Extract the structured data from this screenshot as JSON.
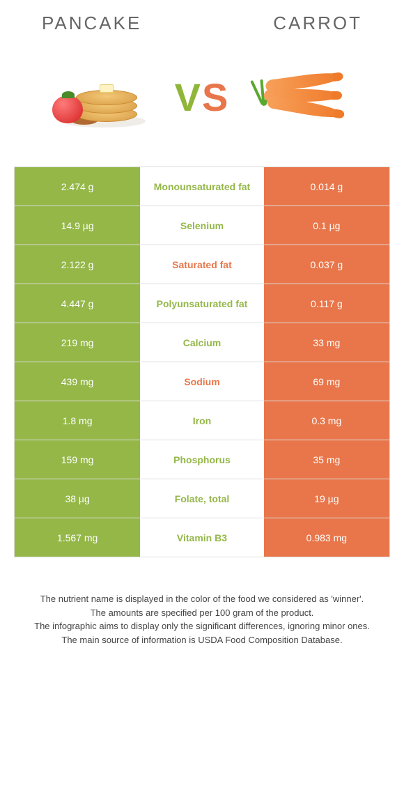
{
  "header": {
    "left_title": "PANCAKE",
    "right_title": "CARROT",
    "vs_v": "V",
    "vs_s": "S"
  },
  "colors": {
    "left_bg": "#94b748",
    "right_bg": "#e8764a",
    "mid_left_text": "#94b748",
    "mid_right_text": "#e8764a"
  },
  "table": {
    "rows": [
      {
        "left": "2.474 g",
        "label": "Monounsaturated fat",
        "right": "0.014 g",
        "winner": "left"
      },
      {
        "left": "14.9 µg",
        "label": "Selenium",
        "right": "0.1 µg",
        "winner": "left"
      },
      {
        "left": "2.122 g",
        "label": "Saturated fat",
        "right": "0.037 g",
        "winner": "right"
      },
      {
        "left": "4.447 g",
        "label": "Polyunsaturated fat",
        "right": "0.117 g",
        "winner": "left"
      },
      {
        "left": "219 mg",
        "label": "Calcium",
        "right": "33 mg",
        "winner": "left"
      },
      {
        "left": "439 mg",
        "label": "Sodium",
        "right": "69 mg",
        "winner": "right"
      },
      {
        "left": "1.8 mg",
        "label": "Iron",
        "right": "0.3 mg",
        "winner": "left"
      },
      {
        "left": "159 mg",
        "label": "Phosphorus",
        "right": "35 mg",
        "winner": "left"
      },
      {
        "left": "38 µg",
        "label": "Folate, total",
        "right": "19 µg",
        "winner": "left"
      },
      {
        "left": "1.567 mg",
        "label": "Vitamin B3",
        "right": "0.983 mg",
        "winner": "left"
      }
    ]
  },
  "footer": {
    "line1": "The nutrient name is displayed in the color of the food we considered as 'winner'.",
    "line2": "The amounts are specified per 100 gram of the product.",
    "line3": "The infographic aims to display only the significant differences, ignoring minor ones.",
    "line4": "The main source of information is USDA Food Composition Database."
  }
}
